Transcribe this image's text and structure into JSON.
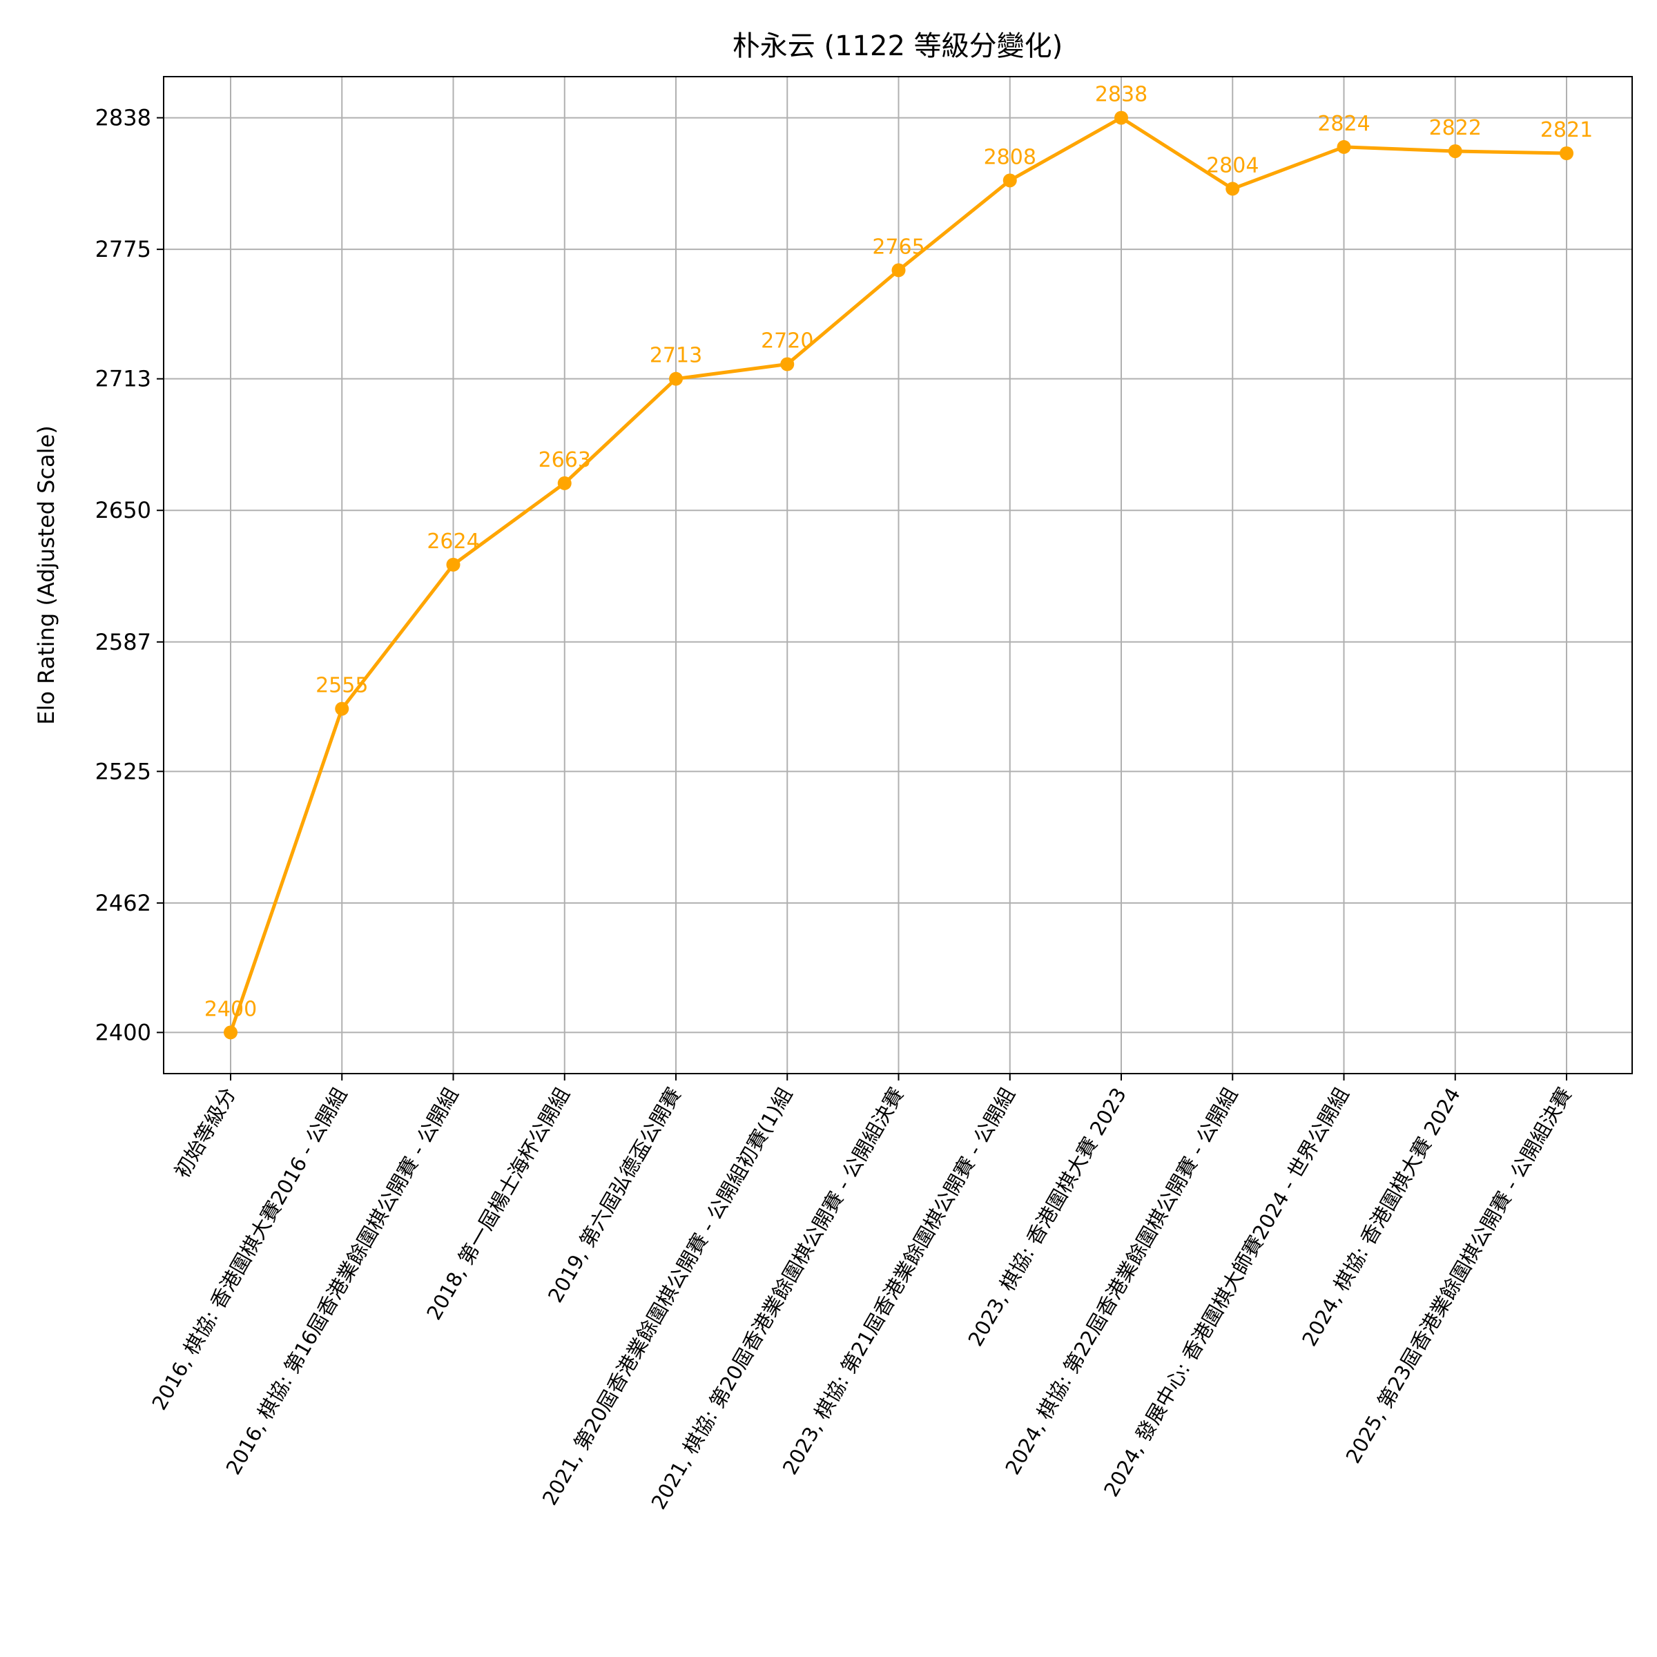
{
  "chart_data": {
    "type": "line",
    "title": "朴永云 (1122 等級分變化)",
    "xlabel": "",
    "ylabel": "Elo Rating (Adjusted Scale)",
    "categories": [
      "初始等級分",
      "2016, 棋協: 香港圍棋大賽2016 - 公開組",
      "2016, 棋協: 第16屆香港業餘圍棋公開賽 - 公開組",
      "2018, 第一屆楊士海杯公開組",
      "2019, 第六屆弘德盃公開賽",
      "2021, 第20屆香港業餘圍棋公開賽 - 公開組初賽(1)組",
      "2021, 棋協: 第20屆香港業餘圍棋公開賽 - 公開組決賽",
      "2023, 棋協: 第21屆香港業餘圍棋公開賽 - 公開組",
      "2023, 棋協: 香港圍棋大賽 2023",
      "2024, 棋協: 第22屆香港業餘圍棋公開賽 - 公開組",
      "2024, 發展中心: 香港圍棋大師賽2024 - 世界公開組",
      "2024, 棋協: 香港圍棋大賽 2024",
      "2025, 第23屆香港業餘圍棋公開賽 - 公開組決賽"
    ],
    "series": [
      {
        "values": [
          2400,
          2555,
          2624,
          2663,
          2713,
          2720,
          2765,
          2808,
          2838,
          2804,
          2824,
          2822,
          2821
        ],
        "color": "#ffa500"
      }
    ],
    "data_labels": [
      "2400",
      "2555",
      "2624",
      "2663",
      "2713",
      "2720",
      "2765",
      "2808",
      "2838",
      "2804",
      "2824",
      "2822",
      "2821"
    ],
    "yticks": [
      2400,
      2462,
      2525,
      2587,
      2650,
      2713,
      2775,
      2838
    ],
    "ylim": [
      2380.3,
      2857.7
    ],
    "grid": true
  }
}
